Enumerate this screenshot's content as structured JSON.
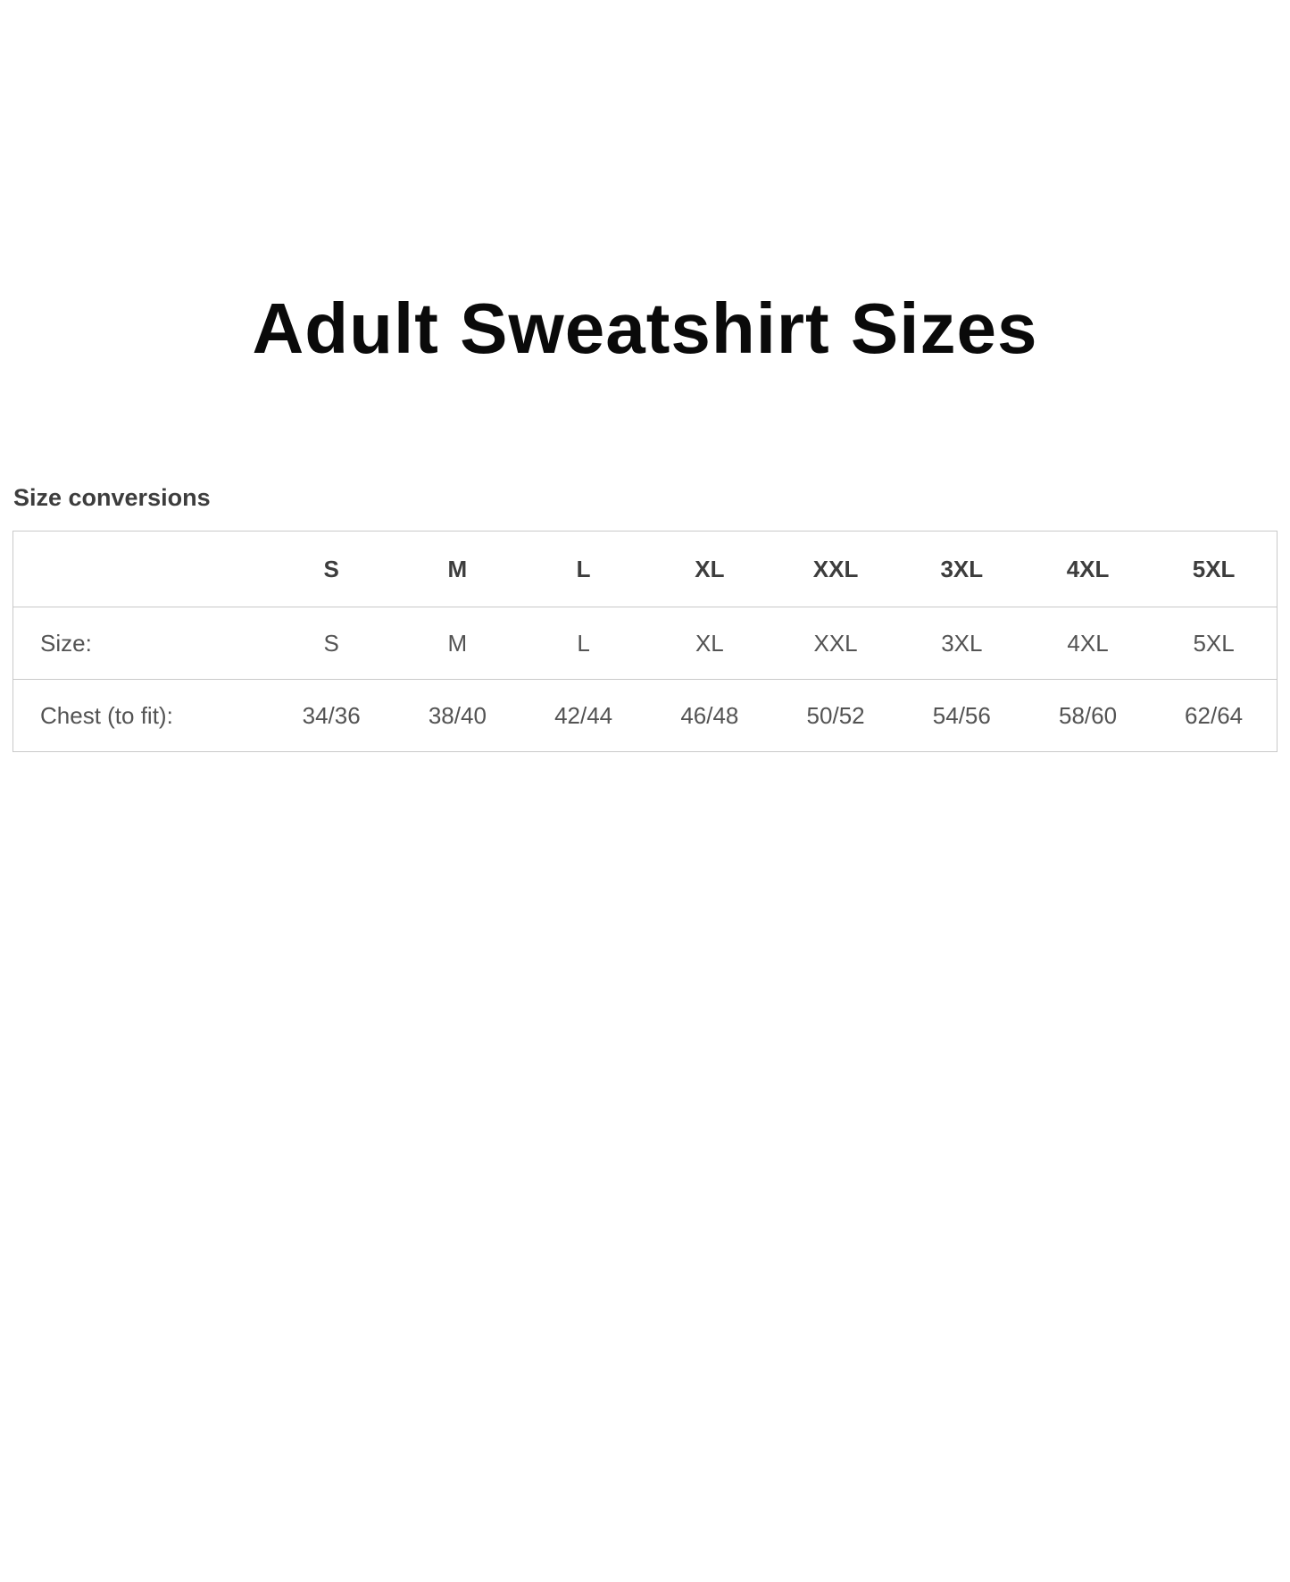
{
  "page": {
    "title": "Adult Sweatshirt Sizes"
  },
  "size_chart": {
    "heading": "Size conversions",
    "columns": [
      "S",
      "M",
      "L",
      "XL",
      "XXL",
      "3XL",
      "4XL",
      "5XL"
    ],
    "rows": [
      {
        "label": "Size:",
        "values": [
          "S",
          "M",
          "L",
          "XL",
          "XXL",
          "3XL",
          "4XL",
          "5XL"
        ]
      },
      {
        "label": "Chest (to fit):",
        "values": [
          "34/36",
          "38/40",
          "42/44",
          "46/48",
          "50/52",
          "54/56",
          "58/60",
          "62/64"
        ]
      }
    ]
  },
  "colors": {
    "title_text": "#0a0a0a",
    "heading_text": "#3d3d3d",
    "header_text": "#3d3d3d",
    "cell_text": "#535353",
    "table_border": "#c9c9c9",
    "background": "#ffffff"
  }
}
